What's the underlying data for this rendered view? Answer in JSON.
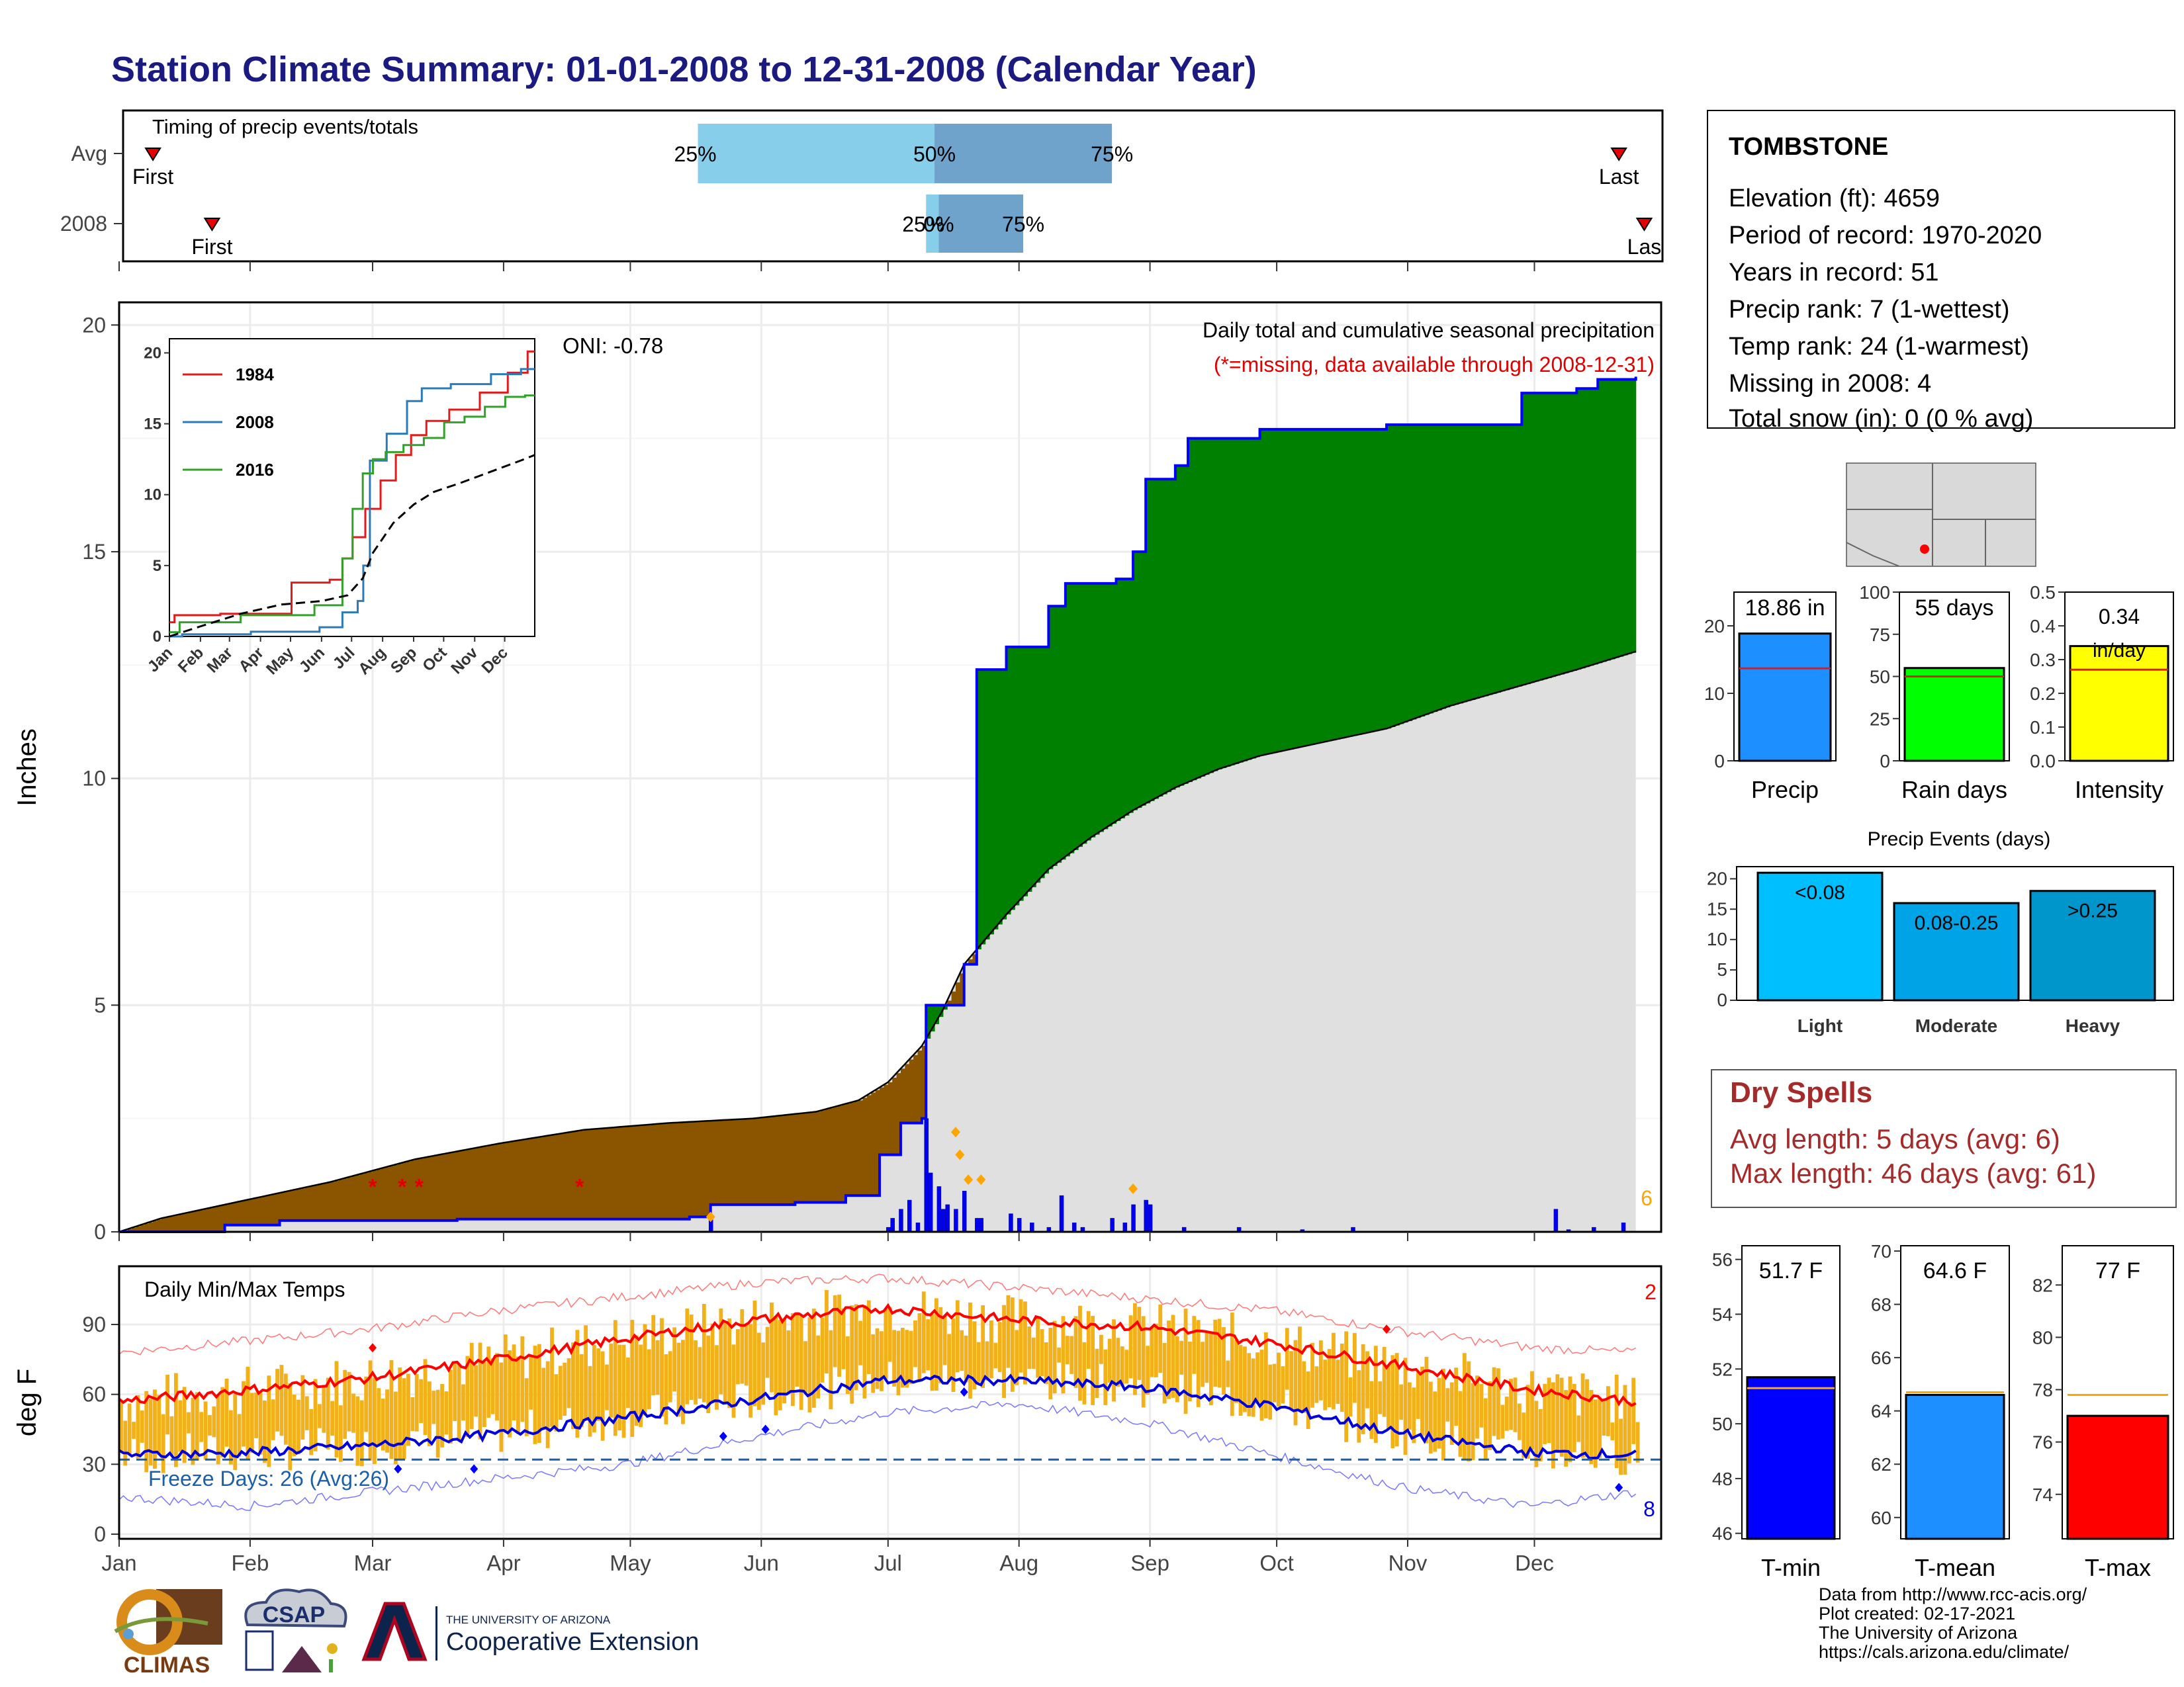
{
  "title": "Station Climate Summary: 01-01-2008 to 12-31-2008 (Calendar Year)",
  "station": {
    "name": "TOMBSTONE",
    "lines": [
      "Elevation (ft): 4659",
      "Period of record: 1970-2020",
      "Years in record: 51",
      "Precip rank: 7 (1-wettest)",
      "Temp rank: 24 (1-warmest)",
      "Missing in 2008: 4",
      "Total snow (in): 0 (0 % avg)"
    ]
  },
  "months": [
    "Jan",
    "Feb",
    "Mar",
    "Apr",
    "May",
    "Jun",
    "Jul",
    "Aug",
    "Sep",
    "Oct",
    "Nov",
    "Dec"
  ],
  "timing": {
    "label": "Timing of precip events/totals",
    "rows": [
      {
        "name": "Avg",
        "first_day": 8,
        "last_day": 355,
        "q25_day": 137,
        "q50_day": 193,
        "q75_day": 235,
        "first_label": "First",
        "last_label": "Last",
        "q25_label": "25%",
        "q50_label": "50%",
        "q75_label": "75%"
      },
      {
        "name": "2008",
        "first_day": 22,
        "last_day": 361,
        "q25_day": 191,
        "q50_day": 194,
        "q75_day": 214,
        "first_label": "First",
        "last_label": "Las",
        "q25_label": "25%",
        "q50_label": "0%",
        "q75_label": "75%"
      }
    ],
    "colors": {
      "early": "#87ceeb",
      "late": "#6fa3cc",
      "marker": "#e60000"
    }
  },
  "precip_chart": {
    "ylabel": "Inches",
    "ylim": [
      0,
      20.5
    ],
    "yticks": [
      0,
      5,
      10,
      15,
      20
    ],
    "annotation_title": "Daily total and cumulative seasonal precipitation",
    "annotation_missing": "(*=missing, data available through 2008-12-31)",
    "oni": "ONI: -0.78",
    "count_label": "6",
    "avg_cumulative": [
      [
        0,
        0
      ],
      [
        10,
        0.3
      ],
      [
        30,
        0.7
      ],
      [
        50,
        1.1
      ],
      [
        70,
        1.6
      ],
      [
        90,
        1.95
      ],
      [
        110,
        2.25
      ],
      [
        130,
        2.4
      ],
      [
        150,
        2.5
      ],
      [
        165,
        2.65
      ],
      [
        175,
        2.9
      ],
      [
        182,
        3.3
      ],
      [
        190,
        4.1
      ],
      [
        195,
        4.9
      ],
      [
        200,
        5.9
      ],
      [
        210,
        7.0
      ],
      [
        220,
        8.0
      ],
      [
        230,
        8.7
      ],
      [
        240,
        9.3
      ],
      [
        250,
        9.8
      ],
      [
        260,
        10.2
      ],
      [
        270,
        10.5
      ],
      [
        285,
        10.8
      ],
      [
        300,
        11.1
      ],
      [
        315,
        11.6
      ],
      [
        330,
        12.0
      ],
      [
        345,
        12.4
      ],
      [
        359,
        12.8
      ]
    ],
    "obs_cumulative": [
      [
        0,
        0
      ],
      [
        25,
        0.15
      ],
      [
        38,
        0.25
      ],
      [
        80,
        0.28
      ],
      [
        135,
        0.33
      ],
      [
        140,
        0.6
      ],
      [
        160,
        0.65
      ],
      [
        172,
        0.8
      ],
      [
        180,
        1.7
      ],
      [
        185,
        2.4
      ],
      [
        190,
        2.5
      ],
      [
        191,
        5.0
      ],
      [
        200,
        5.9
      ],
      [
        203,
        12.4
      ],
      [
        210,
        12.9
      ],
      [
        220,
        13.8
      ],
      [
        224,
        14.3
      ],
      [
        236,
        14.4
      ],
      [
        240,
        15.0
      ],
      [
        243,
        16.6
      ],
      [
        250,
        16.9
      ],
      [
        253,
        17.5
      ],
      [
        270,
        17.7
      ],
      [
        280,
        17.7
      ],
      [
        300,
        17.8
      ],
      [
        330,
        17.8
      ],
      [
        332,
        18.5
      ],
      [
        345,
        18.6
      ],
      [
        350,
        18.8
      ],
      [
        359,
        18.86
      ]
    ],
    "daily_bars": [
      [
        140,
        0.3
      ],
      [
        182,
        0.1
      ],
      [
        183,
        0.3
      ],
      [
        185,
        0.5
      ],
      [
        187,
        0.7
      ],
      [
        189,
        0.2
      ],
      [
        191,
        2.5
      ],
      [
        192,
        1.3
      ],
      [
        194,
        1.0
      ],
      [
        195,
        0.5
      ],
      [
        196,
        0.6
      ],
      [
        198,
        0.5
      ],
      [
        200,
        0.9
      ],
      [
        203,
        0.3
      ],
      [
        204,
        0.3
      ],
      [
        211,
        0.4
      ],
      [
        213,
        0.3
      ],
      [
        216,
        0.2
      ],
      [
        220,
        0.1
      ],
      [
        223,
        0.8
      ],
      [
        226,
        0.2
      ],
      [
        228,
        0.1
      ],
      [
        235,
        0.3
      ],
      [
        238,
        0.2
      ],
      [
        240,
        0.6
      ],
      [
        243,
        0.7
      ],
      [
        244,
        0.6
      ],
      [
        252,
        0.1
      ],
      [
        265,
        0.1
      ],
      [
        280,
        0.05
      ],
      [
        292,
        0.1
      ],
      [
        340,
        0.5
      ],
      [
        343,
        0.05
      ],
      [
        349,
        0.1
      ],
      [
        356,
        0.2
      ]
    ],
    "missing_days": [
      60,
      67,
      71,
      109
    ],
    "peak_markers": [
      [
        140,
        0.33
      ],
      [
        198,
        2.2
      ],
      [
        199,
        1.7
      ],
      [
        201,
        1.15
      ],
      [
        204,
        1.15
      ],
      [
        240,
        0.95
      ]
    ],
    "colors": {
      "deficit": "#8b5500",
      "surplus": "#008000",
      "normal": "#e0e0e0",
      "obs": "#0000ff",
      "daily": "#0000ee",
      "missing": "#e00000",
      "marker": "#ffa500"
    }
  },
  "inset": {
    "yticks": [
      0,
      5,
      10,
      15,
      20
    ],
    "months": [
      "Jan",
      "Feb",
      "Mar",
      "Apr",
      "May",
      "Jun",
      "Jul",
      "Aug",
      "Sep",
      "Oct",
      "Nov",
      "Dec"
    ],
    "series": [
      {
        "name": "1984",
        "color": "#e31a1c",
        "points": [
          [
            0,
            1.0
          ],
          [
            10,
            1.5
          ],
          [
            90,
            1.6
          ],
          [
            150,
            3.8
          ],
          [
            165,
            4.0
          ],
          [
            175,
            5.5
          ],
          [
            185,
            7.0
          ],
          [
            200,
            9.0
          ],
          [
            215,
            11.0
          ],
          [
            230,
            12.8
          ],
          [
            245,
            14.2
          ],
          [
            260,
            15.2
          ],
          [
            290,
            16.0
          ],
          [
            320,
            17.2
          ],
          [
            345,
            18.6
          ],
          [
            359,
            20.1
          ]
        ]
      },
      {
        "name": "2008",
        "color": "#2b7bba",
        "points": [
          [
            0,
            0
          ],
          [
            25,
            0.15
          ],
          [
            135,
            0.33
          ],
          [
            160,
            0.65
          ],
          [
            180,
            1.7
          ],
          [
            190,
            2.5
          ],
          [
            191,
            5.0
          ],
          [
            203,
            12.4
          ],
          [
            224,
            14.3
          ],
          [
            243,
            16.6
          ],
          [
            253,
            17.5
          ],
          [
            300,
            17.8
          ],
          [
            332,
            18.5
          ],
          [
            359,
            18.86
          ]
        ]
      },
      {
        "name": "2016",
        "color": "#33a02c",
        "points": [
          [
            0,
            0.3
          ],
          [
            20,
            1.0
          ],
          [
            120,
            1.5
          ],
          [
            165,
            2.2
          ],
          [
            175,
            5.5
          ],
          [
            185,
            9.0
          ],
          [
            195,
            11.5
          ],
          [
            205,
            12.5
          ],
          [
            220,
            13.0
          ],
          [
            240,
            13.5
          ],
          [
            260,
            14.0
          ],
          [
            280,
            15.1
          ],
          [
            300,
            15.5
          ],
          [
            320,
            16.2
          ],
          [
            340,
            16.9
          ],
          [
            359,
            17.0
          ]
        ]
      },
      {
        "name": "avg",
        "color": "#000000",
        "dashed": true,
        "points": [
          [
            0,
            0
          ],
          [
            30,
            0.7
          ],
          [
            70,
            1.6
          ],
          [
            110,
            2.25
          ],
          [
            150,
            2.5
          ],
          [
            175,
            2.9
          ],
          [
            190,
            4.1
          ],
          [
            200,
            5.9
          ],
          [
            220,
            8.0
          ],
          [
            240,
            9.3
          ],
          [
            260,
            10.2
          ],
          [
            285,
            10.8
          ],
          [
            315,
            11.6
          ],
          [
            345,
            12.4
          ],
          [
            359,
            12.8
          ]
        ]
      }
    ]
  },
  "bar_precip": {
    "label": "Precip",
    "value": 18.86,
    "value_label": "18.86 in",
    "avg": 13.7,
    "ymax": 25,
    "yticks": [
      0,
      10,
      20
    ],
    "color": "#1e8fff"
  },
  "bar_raindays": {
    "label": "Rain days",
    "value": 55,
    "value_label": "55 days",
    "avg": 50,
    "ymax": 100,
    "yticks": [
      0,
      25,
      50,
      75,
      100
    ],
    "color": "#00ff00"
  },
  "bar_intensity": {
    "label": "Intensity",
    "value": 0.34,
    "value_label": "0.34",
    "value_label2": "in/day",
    "avg": 0.27,
    "ymax": 0.5,
    "yticks": [
      0.0,
      0.1,
      0.2,
      0.3,
      0.4,
      0.5
    ],
    "color": "#ffff00"
  },
  "precip_events": {
    "title": "Precip Events (days)",
    "yticks": [
      0,
      5,
      10,
      15,
      20
    ],
    "ymax": 22,
    "bars": [
      {
        "category": "Light",
        "range": "<0.08",
        "value": 21,
        "color": "#00bfff"
      },
      {
        "category": "Moderate",
        "range": "0.08-0.25",
        "value": 16,
        "color": "#00a4e6"
      },
      {
        "category": "Heavy",
        "range": ">0.25",
        "value": 18,
        "color": "#0096cc"
      }
    ]
  },
  "dry_spells": {
    "title": "Dry Spells",
    "avg_line": "Avg length: 5 days (avg: 6)",
    "max_line": "Max length: 46 days (avg: 61)"
  },
  "temp_chart": {
    "title": "Daily Min/Max Temps",
    "ylabel": "deg F",
    "ylim": [
      -2,
      115
    ],
    "yticks": [
      0,
      30,
      60,
      90
    ],
    "freeze_label": "Freeze Days: 26 (Avg:26)",
    "freeze_line": 32,
    "hot_count": "2",
    "cold_count": "8",
    "normal_max": [
      [
        0,
        57
      ],
      [
        31,
        62
      ],
      [
        59,
        67
      ],
      [
        90,
        75
      ],
      [
        120,
        84
      ],
      [
        151,
        92
      ],
      [
        181,
        97
      ],
      [
        212,
        92
      ],
      [
        243,
        89
      ],
      [
        273,
        82
      ],
      [
        304,
        72
      ],
      [
        334,
        62
      ],
      [
        359,
        57
      ]
    ],
    "normal_min": [
      [
        0,
        34
      ],
      [
        31,
        35
      ],
      [
        59,
        38
      ],
      [
        90,
        43
      ],
      [
        120,
        50
      ],
      [
        151,
        58
      ],
      [
        181,
        66
      ],
      [
        212,
        66
      ],
      [
        243,
        63
      ],
      [
        273,
        55
      ],
      [
        304,
        43
      ],
      [
        334,
        35
      ],
      [
        359,
        34
      ]
    ],
    "record_max": [
      [
        0,
        78
      ],
      [
        31,
        83
      ],
      [
        59,
        88
      ],
      [
        90,
        96
      ],
      [
        120,
        102
      ],
      [
        151,
        108
      ],
      [
        181,
        110
      ],
      [
        212,
        106
      ],
      [
        243,
        101
      ],
      [
        273,
        96
      ],
      [
        304,
        87
      ],
      [
        334,
        80
      ],
      [
        359,
        78
      ]
    ],
    "record_min": [
      [
        0,
        16
      ],
      [
        31,
        12
      ],
      [
        59,
        18
      ],
      [
        90,
        24
      ],
      [
        120,
        30
      ],
      [
        151,
        42
      ],
      [
        181,
        52
      ],
      [
        212,
        56
      ],
      [
        243,
        48
      ],
      [
        273,
        34
      ],
      [
        304,
        20
      ],
      [
        334,
        12
      ],
      [
        359,
        18
      ]
    ],
    "colors": {
      "band": "#f2b019",
      "max": "#ff0000",
      "min": "#0000dd",
      "record_max": "#ff7777",
      "record_min": "#7777ff",
      "freeze": "#1a5fa8"
    }
  },
  "temp_bars": [
    {
      "label": "T-min",
      "value": 51.7,
      "value_label": "51.7 F",
      "avg": 51.3,
      "ylim": [
        45.8,
        56.5
      ],
      "yticks": [
        46,
        48,
        50,
        52,
        54,
        56
      ],
      "color": "#0000ff"
    },
    {
      "label": "T-mean",
      "value": 64.6,
      "value_label": "64.6 F",
      "avg": 64.7,
      "ylim": [
        59.2,
        70.2
      ],
      "yticks": [
        60,
        62,
        64,
        66,
        68,
        70
      ],
      "color": "#1e8fff"
    },
    {
      "label": "T-max",
      "value": 77,
      "value_label": "77 F",
      "avg": 77.8,
      "ylim": [
        72.3,
        83.5
      ],
      "yticks": [
        74,
        76,
        78,
        80,
        82
      ],
      "color": "#ff0000"
    }
  ],
  "logos": {
    "climas": "CLIMAS",
    "csap": "CSAP",
    "ua_line1": "THE UNIVERSITY OF ARIZONA",
    "ua_line2": "Cooperative Extension"
  },
  "credits": [
    "Data from http://www.rcc-acis.org/",
    "Plot created: 02-17-2021",
    "The University of Arizona",
    "https://cals.arizona.edu/climate/"
  ]
}
